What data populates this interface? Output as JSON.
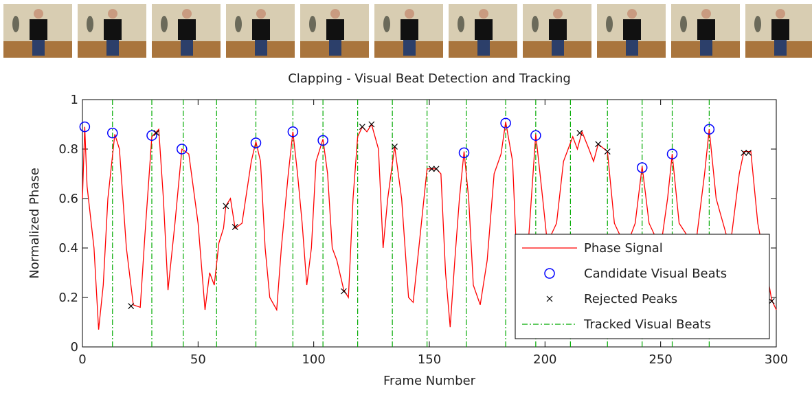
{
  "chart_data": {
    "type": "line",
    "title": "Clapping - Visual Beat Detection and Tracking",
    "x_label": "Frame Number",
    "y_label": "Normalized Phase",
    "xlim": [
      0,
      300
    ],
    "ylim": [
      0,
      1
    ],
    "xticks": [
      0,
      50,
      100,
      150,
      200,
      250,
      300
    ],
    "yticks": [
      0,
      0.2,
      0.4,
      0.6,
      0.8,
      1
    ],
    "grid": false,
    "legend_position": "lower right",
    "series": [
      {
        "name": "Phase Signal",
        "kind": "line",
        "color": "#ff0000",
        "x": [
          0,
          1,
          2,
          5,
          7,
          9,
          11,
          14,
          16,
          19,
          22,
          25,
          27,
          30,
          33,
          35,
          37,
          40,
          43,
          46,
          50,
          53,
          55,
          57,
          59,
          61,
          62,
          64,
          66,
          69,
          73,
          75,
          77,
          79,
          81,
          84,
          86,
          89,
          91,
          93,
          95,
          97,
          99,
          101,
          104,
          106,
          108,
          110,
          113,
          115,
          117,
          119,
          121,
          123,
          125,
          128,
          130,
          132,
          135,
          138,
          141,
          143,
          146,
          149,
          153,
          155,
          157,
          159,
          161,
          163,
          165,
          167,
          169,
          172,
          175,
          178,
          181,
          183,
          186,
          188,
          190,
          193,
          196,
          199,
          201,
          205,
          208,
          212,
          214,
          216,
          219,
          221,
          223,
          227,
          230,
          235,
          239,
          242,
          245,
          250,
          253,
          255,
          258,
          265,
          269,
          271,
          274,
          280,
          284,
          286,
          289,
          292,
          296,
          298,
          300
        ],
        "values": [
          0.6,
          0.89,
          0.65,
          0.4,
          0.07,
          0.25,
          0.6,
          0.86,
          0.8,
          0.4,
          0.17,
          0.16,
          0.45,
          0.85,
          0.88,
          0.6,
          0.23,
          0.5,
          0.8,
          0.78,
          0.5,
          0.15,
          0.3,
          0.25,
          0.42,
          0.48,
          0.57,
          0.6,
          0.48,
          0.5,
          0.75,
          0.83,
          0.75,
          0.4,
          0.2,
          0.15,
          0.4,
          0.7,
          0.87,
          0.7,
          0.5,
          0.25,
          0.4,
          0.75,
          0.84,
          0.7,
          0.4,
          0.35,
          0.23,
          0.2,
          0.6,
          0.85,
          0.89,
          0.87,
          0.9,
          0.8,
          0.4,
          0.6,
          0.81,
          0.6,
          0.2,
          0.18,
          0.45,
          0.72,
          0.72,
          0.7,
          0.3,
          0.08,
          0.35,
          0.6,
          0.79,
          0.6,
          0.25,
          0.17,
          0.35,
          0.7,
          0.78,
          0.91,
          0.75,
          0.3,
          0.2,
          0.45,
          0.86,
          0.6,
          0.42,
          0.5,
          0.75,
          0.85,
          0.8,
          0.87,
          0.8,
          0.75,
          0.82,
          0.79,
          0.5,
          0.4,
          0.5,
          0.73,
          0.5,
          0.4,
          0.6,
          0.78,
          0.5,
          0.4,
          0.7,
          0.88,
          0.6,
          0.4,
          0.7,
          0.79,
          0.79,
          0.5,
          0.3,
          0.19,
          0.15
        ]
      },
      {
        "name": "Candidate Visual Beats",
        "kind": "circle",
        "color": "#0000ff",
        "x": [
          1,
          13,
          30,
          43,
          75,
          91,
          104,
          165,
          183,
          196,
          242,
          255,
          271
        ],
        "values": [
          0.89,
          0.865,
          0.855,
          0.8,
          0.825,
          0.87,
          0.835,
          0.785,
          0.905,
          0.855,
          0.725,
          0.78,
          0.88
        ]
      },
      {
        "name": "Rejected Peaks",
        "kind": "cross",
        "color": "#000000",
        "x": [
          21,
          32,
          62,
          66,
          113,
          121,
          125,
          135,
          151,
          153,
          215,
          223,
          227,
          286,
          288,
          298
        ],
        "values": [
          0.165,
          0.865,
          0.57,
          0.485,
          0.225,
          0.89,
          0.9,
          0.81,
          0.72,
          0.72,
          0.865,
          0.82,
          0.79,
          0.785,
          0.785,
          0.185
        ]
      },
      {
        "name": "Tracked Visual Beats",
        "kind": "vline",
        "color": "#00aa00",
        "x": [
          13,
          30,
          43.6,
          58,
          75,
          91,
          104,
          119,
          134,
          149,
          166,
          183,
          196,
          211,
          227,
          242,
          255,
          271
        ]
      }
    ]
  }
}
